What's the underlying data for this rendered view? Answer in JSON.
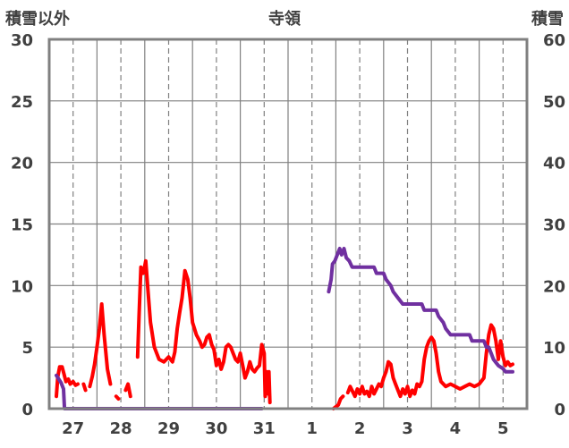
{
  "chart_data": {
    "type": "line",
    "title": "寺領",
    "left_axis": {
      "label": "積雪以外",
      "min": 0,
      "max": 30,
      "ticks": [
        "0",
        "5",
        "10",
        "15",
        "20",
        "25",
        "30"
      ]
    },
    "right_axis": {
      "label": "積雪",
      "min": 0,
      "max": 60,
      "ticks": [
        "0",
        "10",
        "20",
        "30",
        "40",
        "50",
        "60"
      ]
    },
    "x_axis": {
      "min": 0,
      "max": 10,
      "ticks": [
        "27",
        "28",
        "29",
        "30",
        "31",
        "1",
        "2",
        "3",
        "4",
        "5"
      ]
    },
    "grid": true,
    "colors": {
      "other": "#ff0000",
      "snow": "#7030a0",
      "frame": "#808080",
      "grid": "#808080",
      "text": "#404040"
    },
    "series": [
      {
        "key": "other",
        "axis": "left",
        "segments": [
          [
            [
              0.15,
              1.0
            ],
            [
              0.18,
              2.6
            ],
            [
              0.22,
              3.4
            ],
            [
              0.27,
              3.4
            ],
            [
              0.31,
              2.8
            ],
            [
              0.35,
              2.2
            ],
            [
              0.4,
              2.4
            ],
            [
              0.44,
              2.0
            ],
            [
              0.5,
              2.2
            ],
            [
              0.55,
              1.9
            ],
            [
              0.6,
              2.0
            ]
          ],
          [
            [
              0.72,
              2.0
            ],
            [
              0.76,
              1.5
            ]
          ],
          [
            [
              0.85,
              1.8
            ],
            [
              0.9,
              2.6
            ],
            [
              0.95,
              3.6
            ],
            [
              1.0,
              5.0
            ],
            [
              1.05,
              6.5
            ],
            [
              1.1,
              8.5
            ],
            [
              1.15,
              6.0
            ],
            [
              1.22,
              3.2
            ],
            [
              1.28,
              2.0
            ]
          ],
          [
            [
              1.4,
              1.0
            ],
            [
              1.45,
              0.8
            ]
          ],
          [
            [
              1.6,
              1.5
            ],
            [
              1.65,
              2.0
            ],
            [
              1.7,
              1.0
            ]
          ],
          [
            [
              1.85,
              4.2
            ],
            [
              1.88,
              7.5
            ],
            [
              1.92,
              11.5
            ],
            [
              1.97,
              11.0
            ],
            [
              2.02,
              12.0
            ],
            [
              2.07,
              9.5
            ],
            [
              2.12,
              7.0
            ],
            [
              2.2,
              5.0
            ],
            [
              2.3,
              4.0
            ],
            [
              2.4,
              3.8
            ],
            [
              2.5,
              4.2
            ],
            [
              2.58,
              3.8
            ],
            [
              2.63,
              4.6
            ],
            [
              2.68,
              6.5
            ],
            [
              2.73,
              7.8
            ],
            [
              2.78,
              9.0
            ],
            [
              2.84,
              11.2
            ],
            [
              2.9,
              10.5
            ],
            [
              2.95,
              9.0
            ],
            [
              3.0,
              7.0
            ],
            [
              3.08,
              6.0
            ],
            [
              3.15,
              5.5
            ],
            [
              3.2,
              5.0
            ],
            [
              3.25,
              5.2
            ],
            [
              3.3,
              5.8
            ],
            [
              3.35,
              6.0
            ],
            [
              3.4,
              5.2
            ],
            [
              3.45,
              4.8
            ],
            [
              3.5,
              3.5
            ],
            [
              3.55,
              4.0
            ],
            [
              3.6,
              3.2
            ],
            [
              3.65,
              3.8
            ],
            [
              3.7,
              5.0
            ],
            [
              3.75,
              5.2
            ],
            [
              3.8,
              5.0
            ],
            [
              3.85,
              4.5
            ],
            [
              3.9,
              4.0
            ],
            [
              3.95,
              3.8
            ],
            [
              4.0,
              4.5
            ],
            [
              4.05,
              3.5
            ],
            [
              4.1,
              2.5
            ],
            [
              4.15,
              3.0
            ],
            [
              4.2,
              3.8
            ],
            [
              4.25,
              3.2
            ],
            [
              4.3,
              3.0
            ],
            [
              4.35,
              3.3
            ],
            [
              4.4,
              3.5
            ],
            [
              4.45,
              5.2
            ],
            [
              4.5,
              4.5
            ],
            [
              4.52,
              1.0
            ]
          ],
          [
            [
              4.55,
              3.0
            ],
            [
              4.57,
              2.0
            ],
            [
              4.58,
              1.2
            ],
            [
              4.6,
              3.0
            ],
            [
              4.62,
              0.5
            ]
          ],
          [
            [
              5.95,
              0.0
            ],
            [
              6.05,
              0.3
            ],
            [
              6.1,
              0.8
            ],
            [
              6.15,
              1.0
            ]
          ],
          [
            [
              6.25,
              1.3
            ],
            [
              6.3,
              1.8
            ],
            [
              6.35,
              1.4
            ],
            [
              6.4,
              1.0
            ],
            [
              6.45,
              1.6
            ],
            [
              6.5,
              1.2
            ],
            [
              6.55,
              1.8
            ],
            [
              6.6,
              1.2
            ],
            [
              6.65,
              1.4
            ],
            [
              6.7,
              1.0
            ],
            [
              6.75,
              1.8
            ],
            [
              6.8,
              1.2
            ],
            [
              6.85,
              1.6
            ],
            [
              6.9,
              2.0
            ],
            [
              6.95,
              1.8
            ],
            [
              7.0,
              2.5
            ],
            [
              7.05,
              3.0
            ],
            [
              7.1,
              3.8
            ],
            [
              7.15,
              3.6
            ],
            [
              7.2,
              2.5
            ],
            [
              7.25,
              2.0
            ],
            [
              7.3,
              1.5
            ],
            [
              7.35,
              1.0
            ],
            [
              7.4,
              1.6
            ],
            [
              7.45,
              1.2
            ],
            [
              7.5,
              1.8
            ],
            [
              7.55,
              1.0
            ],
            [
              7.6,
              1.5
            ],
            [
              7.65,
              1.2
            ],
            [
              7.7,
              2.0
            ],
            [
              7.75,
              1.8
            ],
            [
              7.8,
              2.2
            ],
            [
              7.85,
              4.0
            ],
            [
              7.9,
              5.0
            ],
            [
              7.95,
              5.5
            ],
            [
              8.0,
              5.8
            ],
            [
              8.05,
              5.5
            ],
            [
              8.1,
              4.5
            ],
            [
              8.15,
              3.0
            ],
            [
              8.2,
              2.2
            ],
            [
              8.3,
              1.8
            ],
            [
              8.4,
              2.0
            ],
            [
              8.5,
              1.8
            ],
            [
              8.6,
              1.6
            ],
            [
              8.7,
              1.8
            ],
            [
              8.8,
              2.0
            ],
            [
              8.9,
              1.8
            ],
            [
              9.0,
              2.0
            ],
            [
              9.1,
              2.5
            ],
            [
              9.15,
              4.5
            ],
            [
              9.2,
              6.0
            ],
            [
              9.25,
              6.8
            ],
            [
              9.3,
              6.5
            ],
            [
              9.35,
              5.5
            ],
            [
              9.4,
              4.0
            ],
            [
              9.45,
              5.5
            ],
            [
              9.5,
              4.2
            ],
            [
              9.55,
              3.5
            ],
            [
              9.6,
              3.8
            ],
            [
              9.65,
              3.5
            ],
            [
              9.7,
              3.6
            ]
          ]
        ]
      },
      {
        "key": "snow",
        "axis": "right",
        "segments": [
          [
            [
              0.15,
              5.4
            ],
            [
              0.2,
              4.8
            ],
            [
              0.25,
              4.2
            ],
            [
              0.3,
              3.2
            ],
            [
              0.32,
              0.0
            ],
            [
              4.45,
              0.0
            ]
          ],
          [
            [
              5.85,
              19.0
            ],
            [
              5.9,
              21.0
            ],
            [
              5.93,
              23.5
            ],
            [
              5.98,
              24.0
            ],
            [
              6.03,
              25.0
            ],
            [
              6.08,
              26.0
            ],
            [
              6.12,
              25.0
            ],
            [
              6.17,
              26.0
            ],
            [
              6.22,
              24.5
            ],
            [
              6.28,
              24.0
            ],
            [
              6.34,
              23.0
            ],
            [
              6.45,
              23.0
            ],
            [
              6.8,
              23.0
            ],
            [
              6.85,
              22.0
            ],
            [
              7.0,
              22.0
            ],
            [
              7.05,
              21.0
            ],
            [
              7.15,
              20.0
            ],
            [
              7.2,
              19.0
            ],
            [
              7.3,
              18.0
            ],
            [
              7.4,
              17.0
            ],
            [
              7.5,
              17.0
            ],
            [
              7.8,
              17.0
            ],
            [
              7.85,
              16.0
            ],
            [
              8.1,
              16.0
            ],
            [
              8.15,
              15.0
            ],
            [
              8.25,
              14.0
            ],
            [
              8.3,
              13.0
            ],
            [
              8.4,
              12.0
            ],
            [
              8.8,
              12.0
            ],
            [
              8.85,
              11.0
            ],
            [
              9.1,
              11.0
            ],
            [
              9.15,
              10.0
            ],
            [
              9.2,
              10.0
            ],
            [
              9.3,
              8.0
            ],
            [
              9.35,
              7.5
            ],
            [
              9.4,
              7.0
            ],
            [
              9.5,
              6.5
            ],
            [
              9.55,
              6.0
            ],
            [
              9.7,
              6.0
            ]
          ]
        ]
      }
    ]
  }
}
